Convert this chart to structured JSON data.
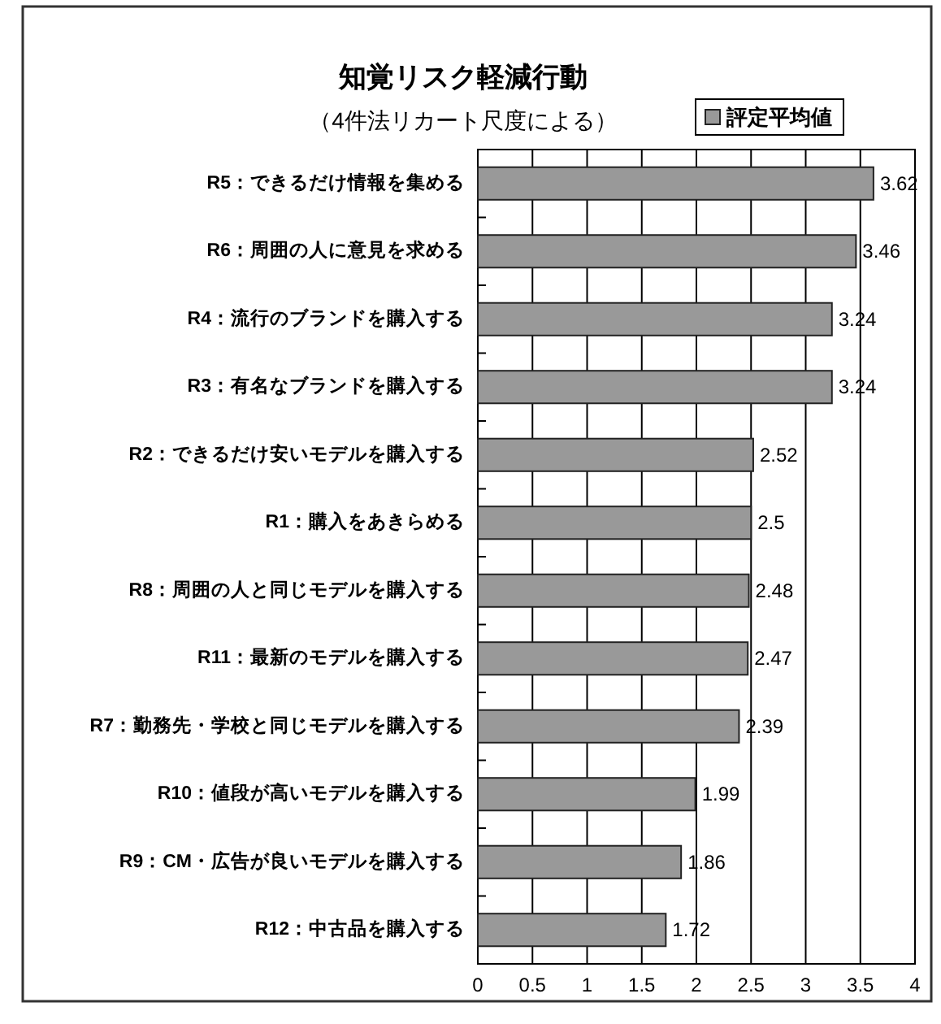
{
  "chart_data": {
    "type": "bar",
    "orientation": "horizontal",
    "title": "知覚リスク軽減行動",
    "subtitle": "（4件法リカート尺度による）",
    "categories": [
      "R5：できるだけ情報を集める",
      "R6：周囲の人に意見を求める",
      "R4：流行のブランドを購入する",
      "R3：有名なブランドを購入する",
      "R2：できるだけ安いモデルを購入する",
      "R1：購入をあきらめる",
      "R8：周囲の人と同じモデルを購入する",
      "R11：最新のモデルを購入する",
      "R7：勤務先・学校と同じモデルを購入する",
      "R10：値段が高いモデルを購入する",
      "R9：CM・広告が良いモデルを購入する",
      "R12：中古品を購入する"
    ],
    "series": [
      {
        "name": "評定平均値",
        "color": "#999999",
        "values": [
          3.62,
          3.46,
          3.24,
          3.24,
          2.52,
          2.5,
          2.48,
          2.47,
          2.39,
          1.99,
          1.86,
          1.72
        ]
      }
    ],
    "xlim": [
      0,
      4
    ],
    "xticks": [
      0,
      0.5,
      1,
      1.5,
      2,
      2.5,
      3,
      3.5,
      4
    ],
    "grid": "x",
    "legend": "top right",
    "data_labels": true
  }
}
